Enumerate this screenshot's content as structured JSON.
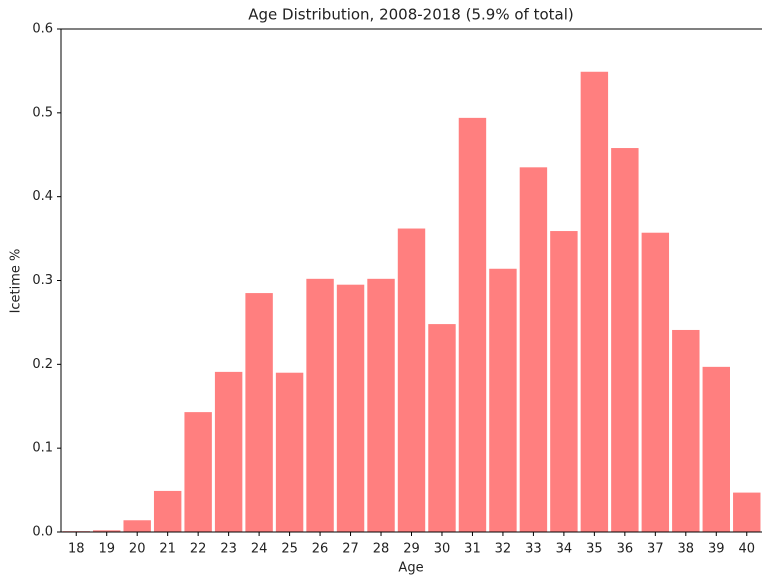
{
  "chart_data": {
    "type": "bar",
    "title": "Age Distribution, 2008-2018 (5.9% of total)",
    "x_label": "Age",
    "y_label": "Icetime %",
    "categories": [
      "18",
      "19",
      "20",
      "21",
      "22",
      "23",
      "24",
      "25",
      "26",
      "27",
      "28",
      "29",
      "30",
      "31",
      "32",
      "33",
      "34",
      "35",
      "36",
      "37",
      "38",
      "39",
      "40"
    ],
    "values": [
      0.001,
      0.002,
      0.014,
      0.049,
      0.143,
      0.191,
      0.285,
      0.19,
      0.302,
      0.295,
      0.302,
      0.362,
      0.248,
      0.494,
      0.314,
      0.435,
      0.359,
      0.549,
      0.458,
      0.357,
      0.241,
      0.197,
      0.047
    ],
    "color": "#ff7f7f",
    "ylim": [
      0,
      0.6
    ],
    "yticks": [
      {
        "value": 0,
        "label": "0.0"
      },
      0.1,
      0.2,
      0.3,
      0.4,
      0.5,
      0.6
    ],
    "grid": false
  }
}
